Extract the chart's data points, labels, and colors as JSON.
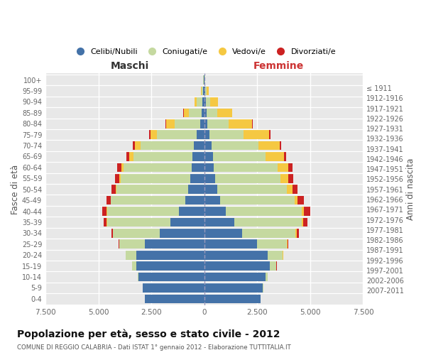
{
  "age_groups": [
    "0-4",
    "5-9",
    "10-14",
    "15-19",
    "20-24",
    "25-29",
    "30-34",
    "35-39",
    "40-44",
    "45-49",
    "50-54",
    "55-59",
    "60-64",
    "65-69",
    "70-74",
    "75-79",
    "80-84",
    "85-89",
    "90-94",
    "95-99",
    "100+"
  ],
  "birth_years": [
    "2007-2011",
    "2002-2006",
    "1997-2001",
    "1992-1996",
    "1987-1991",
    "1982-1986",
    "1977-1981",
    "1972-1976",
    "1967-1971",
    "1962-1966",
    "1957-1961",
    "1952-1956",
    "1947-1951",
    "1942-1946",
    "1937-1941",
    "1932-1936",
    "1927-1931",
    "1922-1926",
    "1917-1921",
    "1912-1916",
    "≤ 1911"
  ],
  "males": {
    "celibi": [
      2800,
      2900,
      3100,
      3200,
      3200,
      2800,
      2100,
      1600,
      1200,
      900,
      750,
      650,
      600,
      550,
      500,
      350,
      200,
      120,
      100,
      60,
      20
    ],
    "coniugati": [
      10,
      20,
      50,
      200,
      500,
      1200,
      2200,
      3000,
      3400,
      3500,
      3400,
      3300,
      3200,
      2800,
      2500,
      1900,
      1200,
      600,
      250,
      80,
      30
    ],
    "vedovi": [
      2,
      2,
      2,
      5,
      5,
      5,
      5,
      10,
      15,
      20,
      40,
      60,
      100,
      200,
      280,
      300,
      400,
      250,
      100,
      20,
      5
    ],
    "divorziati": [
      2,
      2,
      2,
      5,
      15,
      30,
      80,
      150,
      200,
      200,
      200,
      200,
      200,
      120,
      100,
      50,
      30,
      20,
      10,
      5,
      2
    ]
  },
  "females": {
    "nubili": [
      2650,
      2750,
      2900,
      3100,
      3000,
      2500,
      1800,
      1400,
      1000,
      750,
      600,
      500,
      450,
      400,
      350,
      250,
      150,
      100,
      80,
      50,
      20
    ],
    "coniugate": [
      15,
      30,
      80,
      300,
      700,
      1400,
      2500,
      3200,
      3600,
      3500,
      3300,
      3100,
      3000,
      2500,
      2200,
      1600,
      1000,
      500,
      200,
      70,
      25
    ],
    "vedove": [
      3,
      5,
      5,
      10,
      20,
      30,
      50,
      80,
      100,
      150,
      250,
      350,
      500,
      850,
      1000,
      1200,
      1100,
      700,
      350,
      80,
      10
    ],
    "divorziate": [
      2,
      2,
      3,
      10,
      20,
      50,
      100,
      200,
      300,
      300,
      250,
      250,
      200,
      100,
      90,
      60,
      30,
      25,
      15,
      5,
      2
    ]
  },
  "colors": {
    "celibi": "#4472a8",
    "coniugati": "#c5d9a0",
    "vedovi": "#f5c842",
    "divorziati": "#cc2222"
  },
  "xlim": 7500,
  "title": "Popolazione per età, sesso e stato civile - 2012",
  "subtitle": "COMUNE DI REGGIO CALABRIA - Dati ISTAT 1° gennaio 2012 - Elaborazione TUTTITALIA.IT",
  "xlabel_left": "Maschi",
  "xlabel_right": "Femmine",
  "ylabel_left": "Fasce di età",
  "ylabel_right": "Anni di nascita",
  "legend_labels": [
    "Celibi/Nubili",
    "Coniugati/e",
    "Vedovi/e",
    "Divorziati/e"
  ],
  "xticks": [
    -7500,
    -5000,
    -2500,
    0,
    2500,
    5000,
    7500
  ],
  "xtick_labels": [
    "7.500",
    "5.000",
    "2.500",
    "0",
    "2.500",
    "5.000",
    "7.500"
  ]
}
